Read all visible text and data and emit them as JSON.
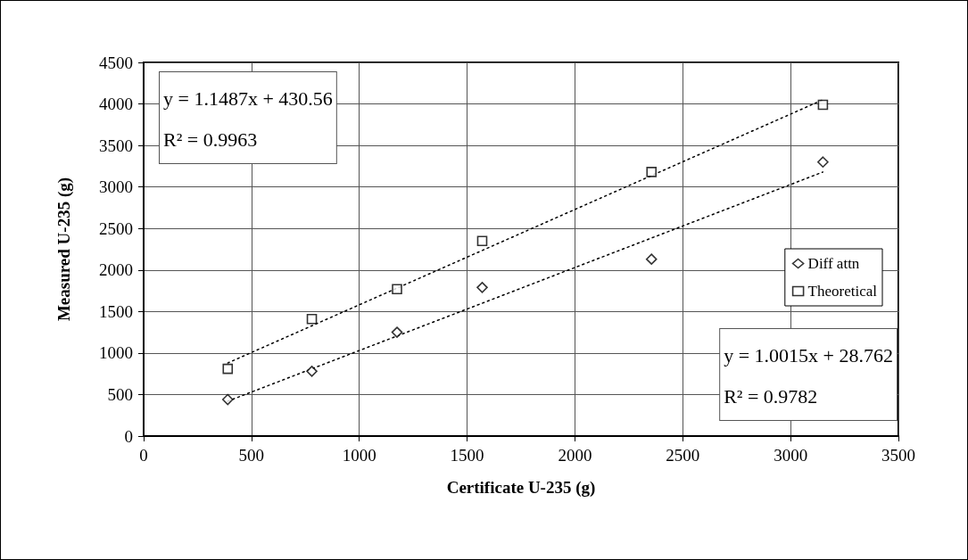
{
  "chart_data": {
    "type": "scatter",
    "xlabel": "Certificate U-235 (g)",
    "ylabel": "Measured U-235 (g)",
    "x": [
      390,
      780,
      1175,
      1570,
      2355,
      3150
    ],
    "series": [
      {
        "name": "Diff attn",
        "color": "#000000",
        "marker": "diamond",
        "values": [
          440,
          780,
          1250,
          1790,
          2130,
          3300
        ]
      },
      {
        "name": "Theoretical",
        "color": "#000000",
        "marker": "square",
        "values": [
          810,
          1410,
          1770,
          2350,
          3180,
          3990
        ]
      },
      {
        "type": "line",
        "color": "#000000",
        "line_style": "dotted",
        "marker": "none",
        "values": [
          880,
          null,
          null,
          null,
          null,
          4050
        ]
      },
      {
        "type": "line",
        "color": "#000000",
        "line_style": "dotted",
        "marker": "none",
        "values": [
          420,
          null,
          null,
          null,
          null,
          3180
        ]
      }
    ],
    "annotations": [
      "y = 1.1487x + 430.56",
      "R² = 0.9963",
      "y = 1.0015x + 28.762",
      "R² = 0.9782"
    ],
    "xlim": [
      0,
      3500
    ],
    "xticks": [
      0,
      500,
      1000,
      1500,
      2000,
      2500,
      3000,
      3500
    ],
    "ylim": [
      0,
      4500
    ],
    "yticks": [
      0,
      500,
      1000,
      1500,
      2000,
      2500,
      3000,
      3500,
      4000,
      4500
    ],
    "grid": true,
    "legend": "right"
  }
}
